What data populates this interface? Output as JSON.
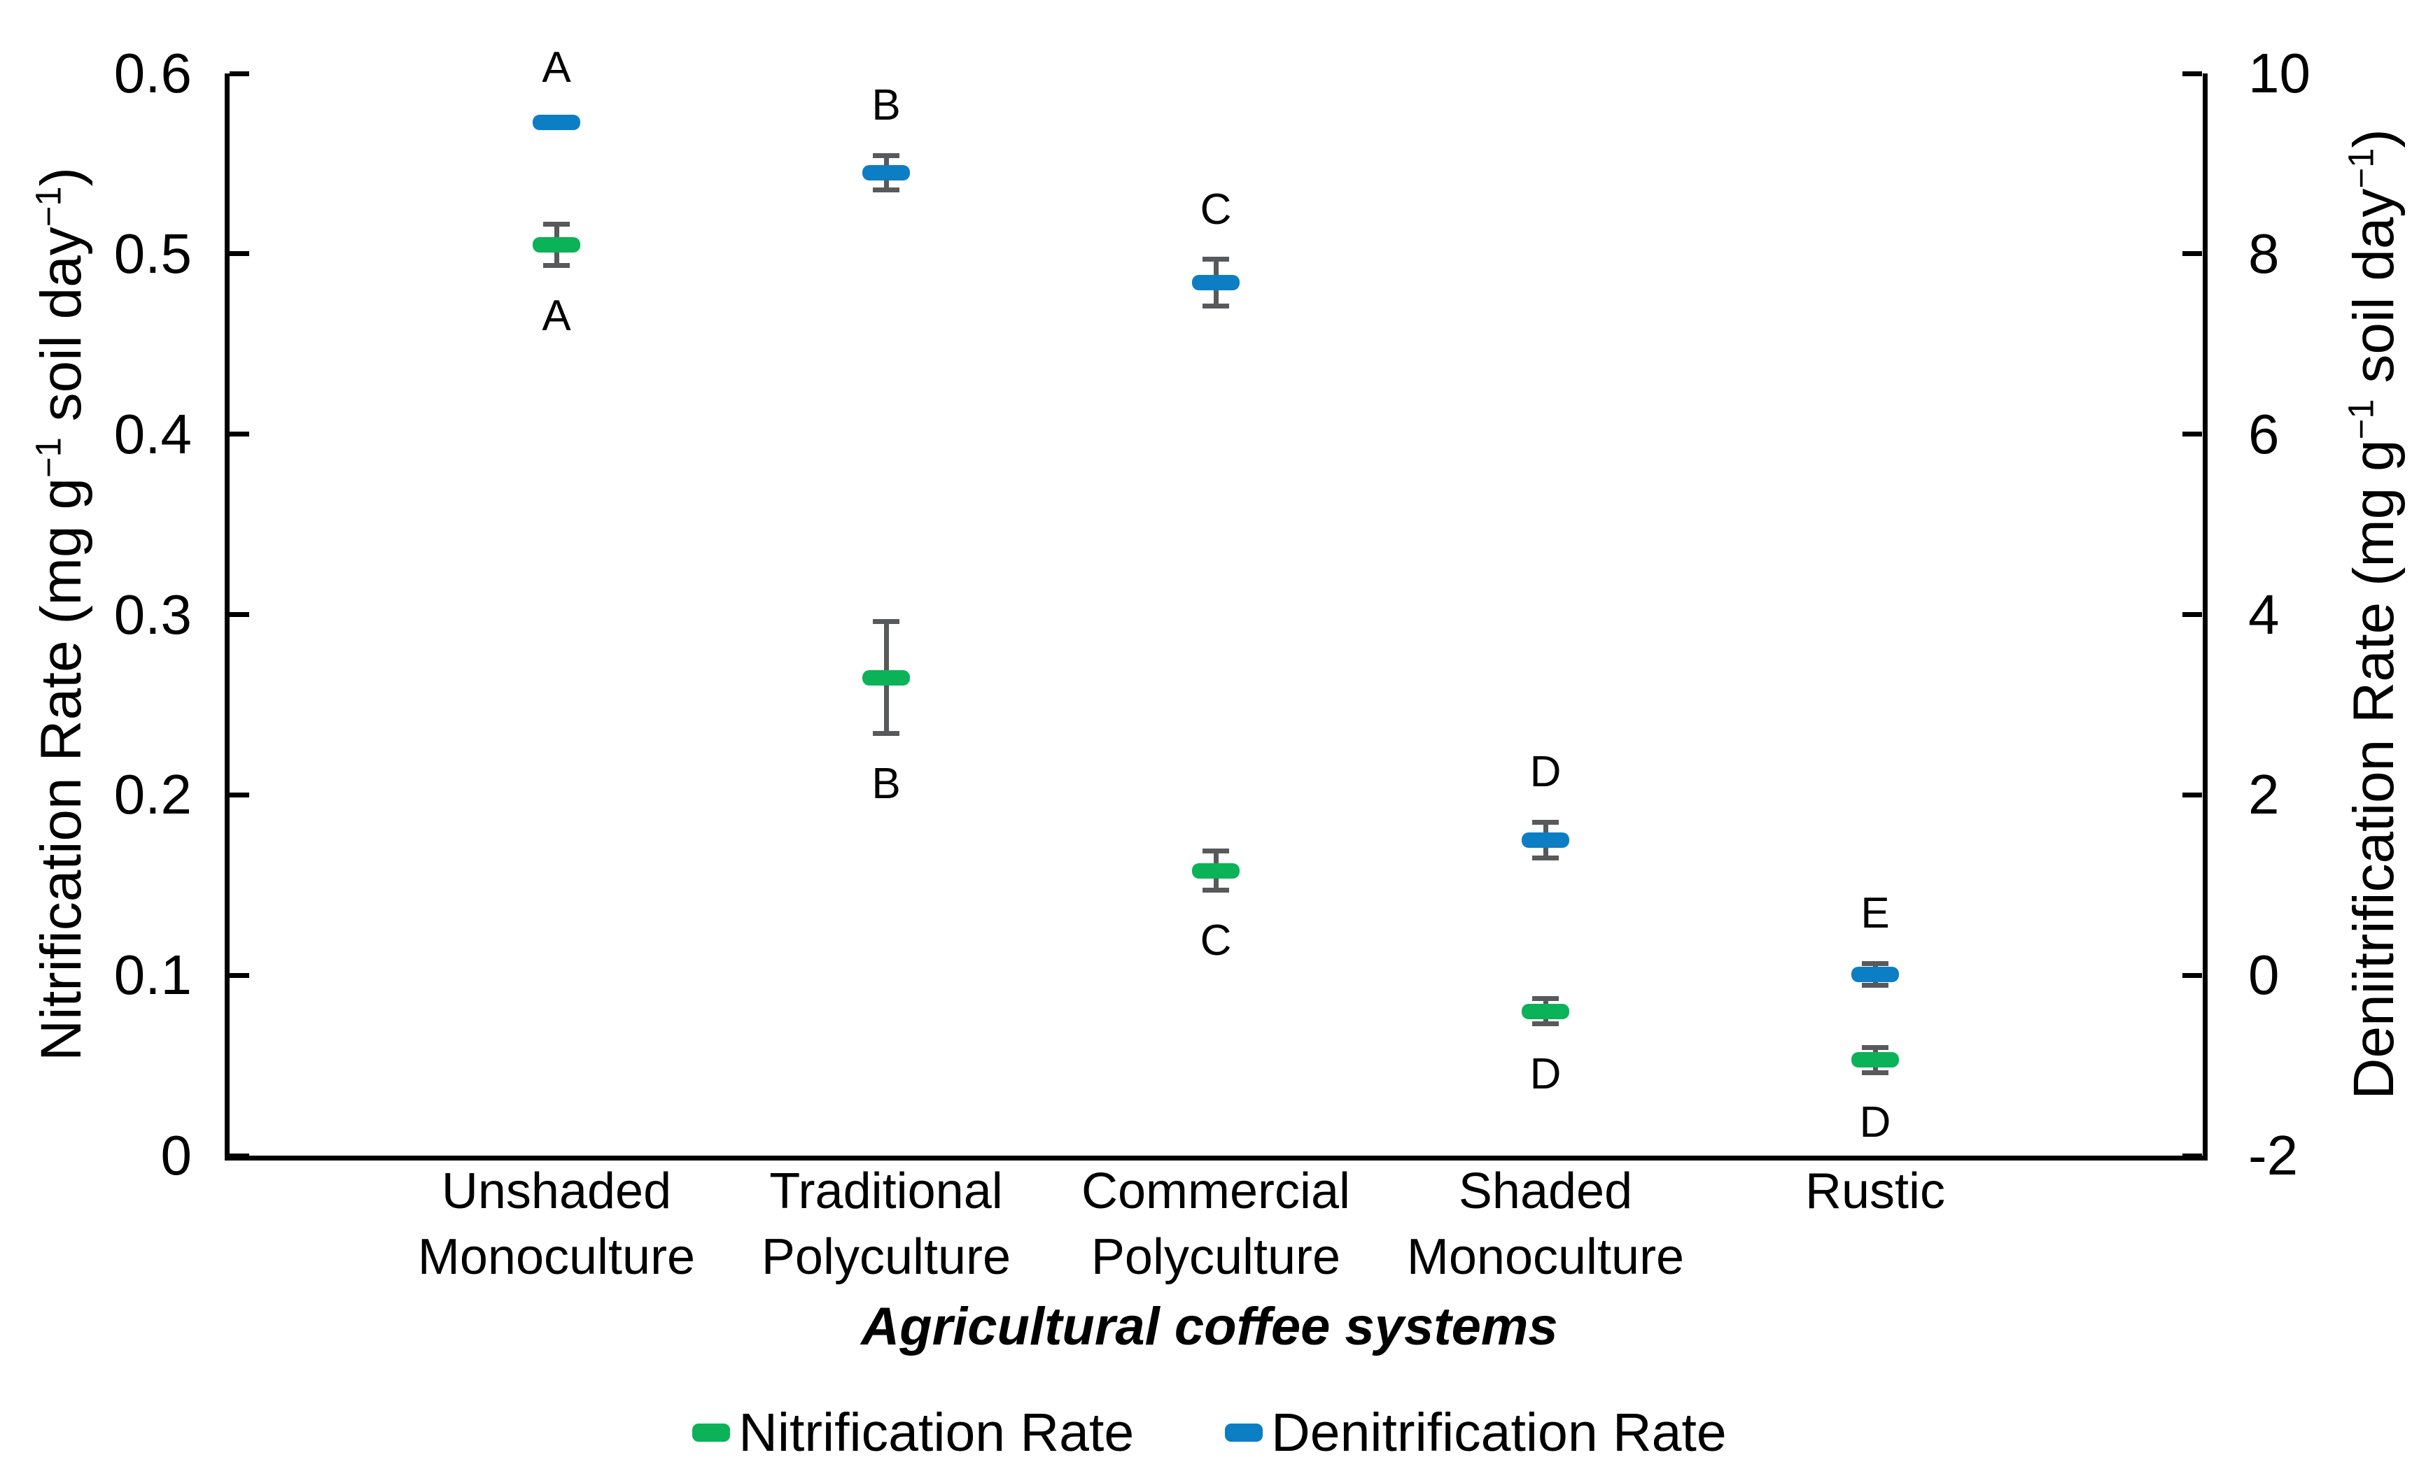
{
  "chart_data": {
    "type": "scatter",
    "title": "",
    "x_axis": {
      "title": "Agricultural coffee systems",
      "categories": [
        "Unshaded Monoculture",
        "Traditional Polyculture",
        "Commercial Polyculture",
        "Shaded Monoculture",
        "Rustic"
      ],
      "category_labels_two_line": [
        "Unshaded\nMonoculture",
        "Traditional\nPolyculture",
        "Commercial\nPolyculture",
        "Shaded\nMonoculture",
        "Rustic"
      ]
    },
    "y_left_axis": {
      "label": "Nitrification Rate (mg g−1 soil day−1)",
      "min": 0,
      "max": 0.6,
      "tick_step": 0.1,
      "tick_labels": [
        "0",
        "0.1",
        "0.2",
        "0.3",
        "0.4",
        "0.5",
        "0.6"
      ]
    },
    "y_right_axis": {
      "label": "Deniitrification Rate (mg g−1 soil day−1)",
      "min": -2,
      "max": 10,
      "tick_step": 2,
      "tick_labels": [
        "-2",
        "0",
        "2",
        "4",
        "6",
        "8",
        "10"
      ]
    },
    "grid": false,
    "legend_position": "bottom",
    "series": [
      {
        "name": "Nitrification Rate",
        "axis": "left",
        "color": "#0BB258",
        "values": [
          0.505,
          0.265,
          0.158,
          0.08,
          0.053
        ],
        "errors": [
          0.0115,
          0.031,
          0.011,
          0.007,
          0.007
        ],
        "letters": [
          "A",
          "B",
          "C",
          "D",
          "D"
        ],
        "letter_position": "below"
      },
      {
        "name": "Denitrification Rate",
        "axis": "right",
        "color": "#0B7EC4",
        "values": [
          9.46,
          8.9,
          7.68,
          1.5,
          0.01
        ],
        "errors": [
          0.05,
          0.19,
          0.26,
          0.2,
          0.12
        ],
        "letters": [
          "A",
          "B",
          "C",
          "D",
          "E"
        ],
        "letter_position": "above"
      }
    ],
    "error_bar_color": "#58595B"
  },
  "left_axis_title": {
    "pre": "Nitrification Rate (mg g",
    "sup1": "−1",
    "mid": " soil day",
    "sup2": "−1",
    "post": ")"
  },
  "right_axis_title": {
    "pre": "Deniitrification Rate (mg g",
    "sup1": "−1",
    "mid": " soil day",
    "sup2": "−1",
    "post": ")"
  },
  "x_axis_title": "Agricultural coffee systems",
  "legend": {
    "items": [
      {
        "label": "Nitrification Rate",
        "color": "#0BB258",
        "marker": "dash-icon"
      },
      {
        "label": "Denitrification Rate",
        "color": "#0B7EC4",
        "marker": "dash-icon"
      }
    ]
  },
  "colors": {
    "nitrification_green": "#0BB258",
    "denitrification_blue": "#0B7EC4",
    "error_bar_gray": "#58595B",
    "axis_black": "#000000"
  }
}
